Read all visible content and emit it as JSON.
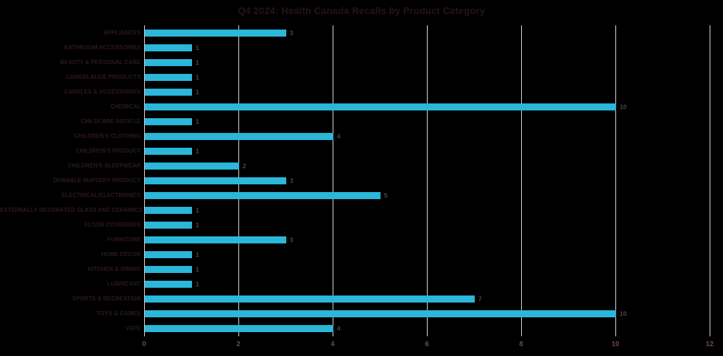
{
  "chart_data": {
    "type": "bar",
    "orientation": "horizontal",
    "title": "Q4 2024: Health Canada Recalls by Product Category",
    "categories": [
      "APPLIANCES",
      "BATHROOM ACCESSORIES",
      "BEAUTY & PERSONAL CARE",
      "CAMOFLAUGE PRODUCTS",
      "CANDLES & ACCESSORIES",
      "CHEMICAL",
      "CHILDCARE ARTICLE",
      "CHILDREN'S CLOTHING",
      "CHILDREN'S PRODUCT",
      "CHILDREN'S SLEEPWEAR",
      "DURABLE NURSERY PRODUCT",
      "ELECTRICAL/ELECTRONICS",
      "EXTERNALLY DECORATED GLASS AND CERAMICS",
      "FLOOR COVERINGS",
      "FURNITURE",
      "HOME DÉCOR",
      "KITCHEN & DINING",
      "LUBRICANT",
      "SPORTS & RECREATION",
      "TOYS & GAMES",
      "VAPE"
    ],
    "values": [
      3,
      1,
      1,
      1,
      1,
      10,
      1,
      4,
      1,
      2,
      3,
      5,
      1,
      1,
      3,
      1,
      1,
      1,
      7,
      10,
      4
    ],
    "data_labels_shown": true,
    "xlabel": "",
    "ylabel": "",
    "xlim": [
      0,
      12
    ],
    "xticks": [
      0,
      2,
      4,
      6,
      8,
      10,
      12
    ],
    "grid": "vertical-gridlines-on",
    "legend": "none",
    "colors": {
      "bar": "#2ab7d9",
      "gridline": "#e6dada",
      "axis_line": "#e6dada",
      "title_text": "#241317",
      "category_text": "#2c191e",
      "value_text": "#5a3c44",
      "tick_text": "#6b4a52",
      "background": "#000000"
    }
  }
}
